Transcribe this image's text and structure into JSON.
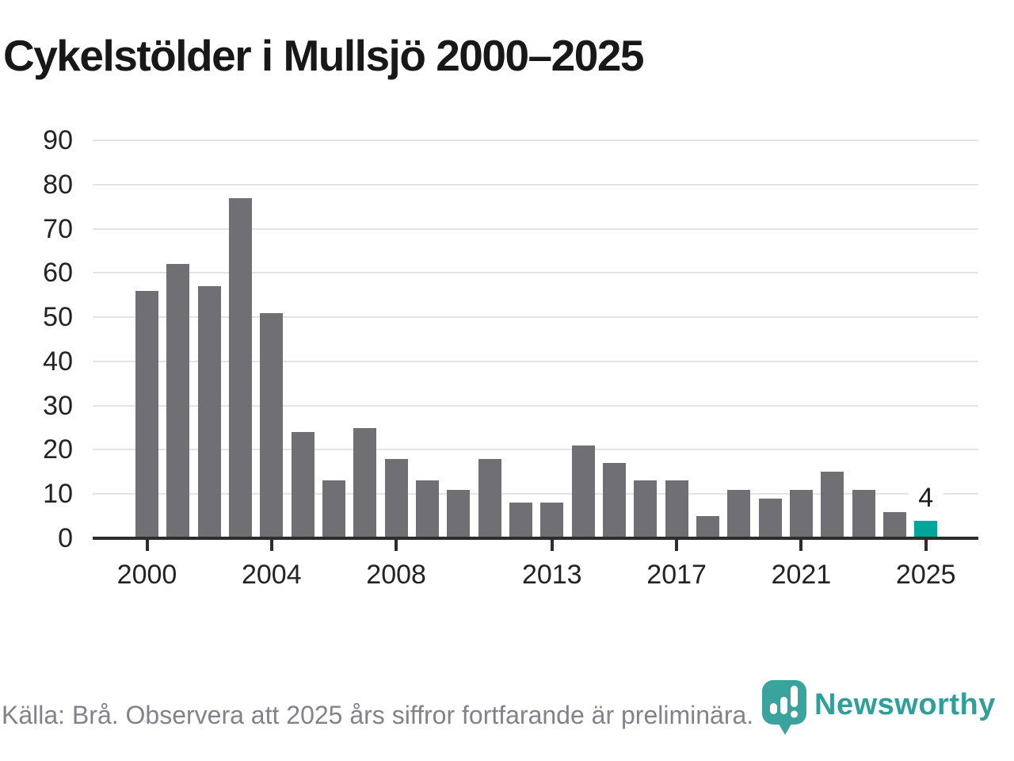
{
  "chart_data": {
    "type": "bar",
    "title": "Cykelstölder i Mullsjö 2000–2025",
    "x": [
      2000,
      2001,
      2002,
      2003,
      2004,
      2005,
      2006,
      2007,
      2008,
      2009,
      2010,
      2011,
      2012,
      2013,
      2014,
      2015,
      2016,
      2017,
      2018,
      2019,
      2020,
      2021,
      2022,
      2023,
      2024,
      2025
    ],
    "values": [
      56,
      62,
      57,
      77,
      51,
      24,
      13,
      25,
      18,
      13,
      11,
      18,
      8,
      8,
      21,
      17,
      13,
      13,
      5,
      11,
      9,
      11,
      15,
      11,
      6,
      4
    ],
    "x_tick_labels": [
      "2000",
      "2004",
      "2008",
      "2013",
      "2017",
      "2021",
      "2025"
    ],
    "y_ticks": [
      0,
      10,
      20,
      30,
      40,
      50,
      60,
      70,
      80,
      90
    ],
    "ylim": [
      0,
      90
    ],
    "grid": "horizontal",
    "legend": "none",
    "bar_color": "#6f6f74",
    "highlight": {
      "year": 2025,
      "color": "#00a69b",
      "label": "4"
    }
  },
  "footer": {
    "source_note": "Källa: Brå. Observera att 2025 års siffror fortfarande är preliminära.",
    "brand": {
      "name": "Newsworthy",
      "icon": "newsworthy-bubble-barchart-icon",
      "icon_color": "#3aa39e",
      "text_color": "#2f9f99"
    }
  }
}
